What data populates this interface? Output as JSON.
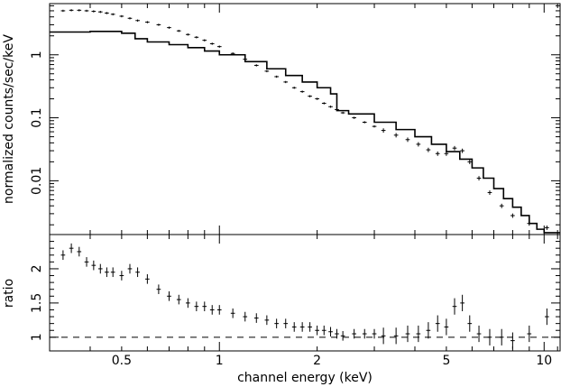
{
  "chart_data": [
    {
      "type": "scatter",
      "panel": "spectrum",
      "ylabel": "normalized counts/sec/keV",
      "xlabel": "",
      "xscale": "log",
      "yscale": "log",
      "xlim": [
        0.3,
        11.2
      ],
      "ylim": [
        0.0014,
        6.5
      ],
      "yticks": [
        0.01,
        0.1,
        1
      ],
      "ytick_labels": [
        "0.01",
        "0.1",
        "1"
      ],
      "grid": false,
      "series": [
        {
          "kind": "data-with-errorbars",
          "x": [
            0.33,
            0.35,
            0.37,
            0.39,
            0.41,
            0.43,
            0.45,
            0.47,
            0.5,
            0.53,
            0.56,
            0.6,
            0.65,
            0.7,
            0.75,
            0.8,
            0.85,
            0.9,
            0.95,
            1.0,
            1.1,
            1.2,
            1.3,
            1.4,
            1.5,
            1.6,
            1.7,
            1.8,
            1.9,
            2.0,
            2.1,
            2.2,
            2.3,
            2.4,
            2.6,
            2.8,
            3.0,
            3.2,
            3.5,
            3.8,
            4.1,
            4.4,
            4.7,
            5.0,
            5.3,
            5.6,
            5.9,
            6.3,
            6.8,
            7.4,
            8.0,
            9.0,
            10.2
          ],
          "y": [
            5.0,
            5.1,
            5.1,
            5.0,
            4.9,
            4.8,
            4.6,
            4.4,
            4.1,
            3.8,
            3.5,
            3.3,
            3.0,
            2.7,
            2.4,
            2.1,
            1.9,
            1.7,
            1.5,
            1.35,
            1.05,
            0.85,
            0.68,
            0.55,
            0.45,
            0.37,
            0.3,
            0.26,
            0.22,
            0.2,
            0.17,
            0.15,
            0.135,
            0.12,
            0.1,
            0.085,
            0.073,
            0.063,
            0.053,
            0.045,
            0.038,
            0.031,
            0.027,
            0.027,
            0.033,
            0.03,
            0.02,
            0.011,
            0.0065,
            0.004,
            0.0028,
            0.0021,
            0.0018
          ]
        },
        {
          "kind": "model-step",
          "x": [
            0.3,
            0.35,
            0.4,
            0.45,
            0.5,
            0.55,
            0.6,
            0.7,
            0.8,
            0.9,
            1.0,
            1.2,
            1.4,
            1.6,
            1.8,
            2.0,
            2.2,
            2.3,
            2.5,
            3.0,
            3.5,
            4.0,
            4.5,
            5.0,
            5.5,
            6.0,
            6.5,
            7.0,
            7.5,
            8.0,
            8.5,
            9.0,
            9.5,
            10.0,
            11.2
          ],
          "y": [
            2.3,
            2.3,
            2.35,
            2.35,
            2.2,
            1.8,
            1.6,
            1.45,
            1.3,
            1.15,
            1.0,
            0.78,
            0.6,
            0.47,
            0.37,
            0.3,
            0.24,
            0.13,
            0.115,
            0.085,
            0.065,
            0.05,
            0.038,
            0.029,
            0.022,
            0.016,
            0.011,
            0.0075,
            0.0052,
            0.0038,
            0.0028,
            0.0021,
            0.0017,
            0.0015,
            0.0015
          ]
        }
      ]
    },
    {
      "type": "scatter",
      "panel": "ratio",
      "ylabel": "ratio",
      "xlabel": "channel energy (keV)",
      "xscale": "log",
      "xlim": [
        0.3,
        11.2
      ],
      "ylim": [
        0.8,
        2.5
      ],
      "yticks": [
        1,
        1.5,
        2
      ],
      "ytick_labels": [
        "1",
        "1.5",
        "2"
      ],
      "xticks": [
        0.5,
        1,
        2,
        5,
        10
      ],
      "xtick_labels": [
        "0.5",
        "1",
        "2",
        "5",
        "10"
      ],
      "reference_line": 1.0,
      "grid": false,
      "series": [
        {
          "kind": "data-with-errorbars",
          "x": [
            0.33,
            0.35,
            0.37,
            0.39,
            0.41,
            0.43,
            0.45,
            0.47,
            0.5,
            0.53,
            0.56,
            0.6,
            0.65,
            0.7,
            0.75,
            0.8,
            0.85,
            0.9,
            0.95,
            1.0,
            1.1,
            1.2,
            1.3,
            1.4,
            1.5,
            1.6,
            1.7,
            1.8,
            1.9,
            2.0,
            2.1,
            2.2,
            2.3,
            2.4,
            2.6,
            2.8,
            3.0,
            3.2,
            3.5,
            3.8,
            4.1,
            4.4,
            4.7,
            5.0,
            5.3,
            5.6,
            5.9,
            6.3,
            6.8,
            7.4,
            8.0,
            9.0,
            10.2
          ],
          "y": [
            2.2,
            2.3,
            2.25,
            2.1,
            2.05,
            2.0,
            1.95,
            1.95,
            1.9,
            2.0,
            1.95,
            1.85,
            1.7,
            1.6,
            1.55,
            1.5,
            1.45,
            1.45,
            1.4,
            1.4,
            1.35,
            1.3,
            1.28,
            1.25,
            1.2,
            1.2,
            1.15,
            1.15,
            1.15,
            1.1,
            1.1,
            1.08,
            1.05,
            1.02,
            1.05,
            1.05,
            1.05,
            1.02,
            1.02,
            1.05,
            1.05,
            1.1,
            1.2,
            1.15,
            1.45,
            1.5,
            1.2,
            1.05,
            1.0,
            1.0,
            0.95,
            1.05,
            1.3
          ]
        }
      ]
    }
  ]
}
